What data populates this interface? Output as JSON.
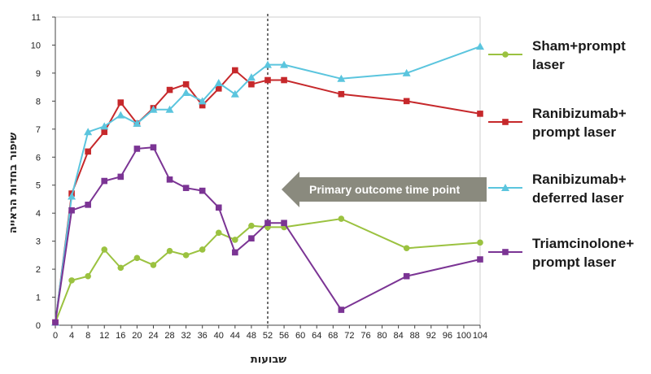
{
  "chart_data": {
    "type": "line",
    "xlabel": "שבועות",
    "ylabel": "שיפור בחדות הראייה",
    "xlim": [
      0,
      104
    ],
    "ylim": [
      0,
      11
    ],
    "xticks": [
      0,
      4,
      8,
      12,
      16,
      20,
      24,
      28,
      32,
      36,
      40,
      44,
      48,
      52,
      56,
      60,
      64,
      68,
      72,
      76,
      80,
      84,
      88,
      92,
      96,
      100,
      104
    ],
    "yticks": [
      0,
      1,
      2,
      3,
      4,
      5,
      6,
      7,
      8,
      9,
      10,
      11
    ],
    "annotation": {
      "text": "Primary outcome time point",
      "x": 52
    },
    "series": [
      {
        "name": "Sham+prompt laser",
        "legend_lines": [
          "Sham+prompt",
          "laser"
        ],
        "color": "#9bc240",
        "marker": "circle",
        "x": [
          0,
          4,
          8,
          12,
          16,
          20,
          24,
          28,
          32,
          36,
          40,
          44,
          48,
          52,
          56,
          70,
          86,
          104
        ],
        "y": [
          0.1,
          1.6,
          1.75,
          2.7,
          2.05,
          2.4,
          2.15,
          2.65,
          2.5,
          2.7,
          3.3,
          3.05,
          3.55,
          3.5,
          3.5,
          3.8,
          2.75,
          2.95
        ]
      },
      {
        "name": "Ranibizumab+ prompt laser",
        "legend_lines": [
          "Ranibizumab+",
          "prompt laser"
        ],
        "color": "#c6282b",
        "marker": "square",
        "x": [
          0,
          4,
          8,
          12,
          16,
          20,
          24,
          28,
          32,
          36,
          40,
          44,
          48,
          52,
          56,
          70,
          86,
          104
        ],
        "y": [
          0.1,
          4.7,
          6.2,
          6.9,
          7.95,
          7.2,
          7.75,
          8.4,
          8.6,
          7.85,
          8.45,
          9.1,
          8.6,
          8.75,
          8.75,
          8.25,
          8.0,
          7.55
        ]
      },
      {
        "name": "Ranibizumab+ deferred laser",
        "legend_lines": [
          "Ranibizumab+",
          "deferred laser"
        ],
        "color": "#5bc5de",
        "marker": "triangle",
        "x": [
          0,
          4,
          8,
          12,
          16,
          20,
          24,
          28,
          32,
          36,
          40,
          44,
          48,
          52,
          56,
          70,
          86,
          104
        ],
        "y": [
          0.1,
          4.6,
          6.9,
          7.1,
          7.5,
          7.2,
          7.7,
          7.7,
          8.3,
          8.0,
          8.65,
          8.25,
          8.85,
          9.3,
          9.3,
          8.8,
          9.0,
          9.95
        ]
      },
      {
        "name": "Triamcinolone+ prompt laser",
        "legend_lines": [
          "Triamcinolone+",
          "prompt laser"
        ],
        "color": "#7b3494",
        "marker": "square",
        "x": [
          0,
          4,
          8,
          12,
          16,
          20,
          24,
          28,
          32,
          36,
          40,
          44,
          48,
          52,
          56,
          70,
          86,
          104
        ],
        "y": [
          0.1,
          4.1,
          4.3,
          5.15,
          5.3,
          6.3,
          6.35,
          5.2,
          4.9,
          4.8,
          4.2,
          2.6,
          3.1,
          3.65,
          3.65,
          0.55,
          1.75,
          2.35
        ]
      }
    ]
  }
}
